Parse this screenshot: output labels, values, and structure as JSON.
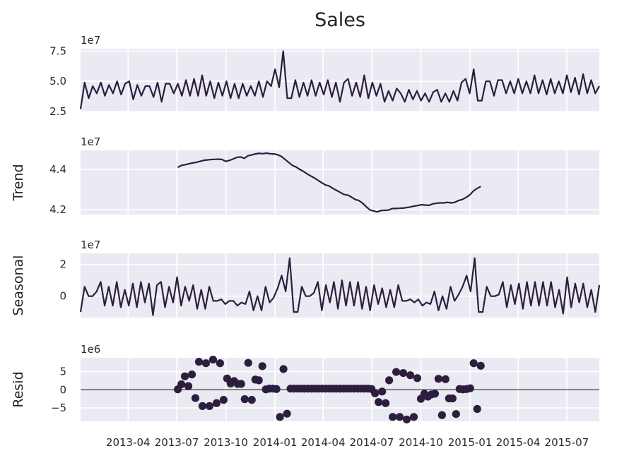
{
  "chart_data": {
    "type": "line",
    "title": "Sales",
    "color": "#2d1e3e",
    "background": "#eaeaf2",
    "grid": true,
    "x_range": [
      "2013-01-02",
      "2015-08-31"
    ],
    "x_ticks": [
      "2013-04",
      "2013-07",
      "2013-10",
      "2014-01",
      "2014-04",
      "2014-07",
      "2014-10",
      "2015-01",
      "2015-04",
      "2015-07"
    ],
    "panels": [
      {
        "id": "observed",
        "ylabel": "",
        "multiplier": "1e7",
        "style": "line",
        "ylim": [
          2.5,
          7.7
        ],
        "yticks": [
          "2.5",
          "5.0",
          "7.5"
        ],
        "ytick_values": [
          2.5,
          5.0,
          7.5
        ],
        "values": [
          2.7,
          4.9,
          3.6,
          4.6,
          4.0,
          4.9,
          3.8,
          4.7,
          4.0,
          5.0,
          3.9,
          4.8,
          5.0,
          3.5,
          4.7,
          3.8,
          4.6,
          4.6,
          3.7,
          4.9,
          3.3,
          4.8,
          4.8,
          4.0,
          4.8,
          3.8,
          5.1,
          3.8,
          5.2,
          3.8,
          5.5,
          3.8,
          5.0,
          3.6,
          4.9,
          3.8,
          5.0,
          3.6,
          4.8,
          3.6,
          4.8,
          3.8,
          4.6,
          3.8,
          5.0,
          3.7,
          5.0,
          4.6,
          6.0,
          4.5,
          7.5,
          3.6,
          3.6,
          5.1,
          3.7,
          4.9,
          3.8,
          5.1,
          3.8,
          4.9,
          3.9,
          5.1,
          3.7,
          4.9,
          3.3,
          4.9,
          5.2,
          3.8,
          4.9,
          3.7,
          5.5,
          3.6,
          4.9,
          3.8,
          4.8,
          3.3,
          4.2,
          3.4,
          4.4,
          4.0,
          3.3,
          4.3,
          3.5,
          4.2,
          3.4,
          4.0,
          3.3,
          4.1,
          4.3,
          3.3,
          4.0,
          3.3,
          4.2,
          3.4,
          4.9,
          5.2,
          4.0,
          6.0,
          3.4,
          3.4,
          5.0,
          5.0,
          3.8,
          5.1,
          5.1,
          4.0,
          5.0,
          4.0,
          5.2,
          4.0,
          5.0,
          4.0,
          5.5,
          4.0,
          5.1,
          3.9,
          5.2,
          4.0,
          5.0,
          4.0,
          5.5,
          4.1,
          5.3,
          3.9,
          5.6,
          4.0,
          5.1,
          4.0,
          4.6
        ],
        "x_start": "2013-01-02",
        "x_end": "2015-08-31"
      },
      {
        "id": "trend",
        "ylabel": "Trend",
        "multiplier": "1e7",
        "style": "line",
        "ylim": [
          4.175,
          4.495
        ],
        "yticks": [
          "4.2",
          "4.4"
        ],
        "ytick_values": [
          4.2,
          4.4
        ],
        "values": [
          4.41,
          4.42,
          4.423,
          4.428,
          4.432,
          4.435,
          4.44,
          4.445,
          4.447,
          4.449,
          4.45,
          4.451,
          4.449,
          4.44,
          4.445,
          4.452,
          4.46,
          4.462,
          4.455,
          4.468,
          4.472,
          4.477,
          4.48,
          4.478,
          4.481,
          4.478,
          4.477,
          4.473,
          4.465,
          4.45,
          4.435,
          4.42,
          4.412,
          4.4,
          4.39,
          4.378,
          4.367,
          4.357,
          4.345,
          4.333,
          4.322,
          4.317,
          4.305,
          4.295,
          4.285,
          4.275,
          4.272,
          4.262,
          4.25,
          4.245,
          4.232,
          4.214,
          4.198,
          4.193,
          4.188,
          4.195,
          4.196,
          4.197,
          4.205,
          4.205,
          4.206,
          4.207,
          4.21,
          4.213,
          4.217,
          4.22,
          4.224,
          4.222,
          4.221,
          4.228,
          4.231,
          4.233,
          4.233,
          4.236,
          4.233,
          4.236,
          4.245,
          4.25,
          4.26,
          4.272,
          4.292,
          4.305,
          4.315
        ],
        "x_start": "2013-07-03",
        "x_end": "2015-01-21"
      },
      {
        "id": "seasonal",
        "ylabel": "Seasonal",
        "multiplier": "1e7",
        "style": "line",
        "ylim": [
          -1.35,
          2.7
        ],
        "yticks": [
          "0",
          "2"
        ],
        "ytick_values": [
          0,
          2
        ],
        "values": [
          -1.0,
          0.6,
          0.0,
          0.0,
          0.3,
          0.9,
          -0.6,
          0.6,
          -0.6,
          0.9,
          -0.7,
          0.4,
          -0.6,
          0.8,
          -0.7,
          0.9,
          -0.4,
          0.8,
          -1.2,
          0.7,
          0.9,
          -0.7,
          0.6,
          -0.4,
          1.2,
          -0.6,
          0.6,
          -0.3,
          0.7,
          -0.8,
          0.4,
          -0.8,
          0.6,
          -0.3,
          -0.3,
          -0.2,
          -0.5,
          -0.3,
          -0.3,
          -0.6,
          -0.4,
          -0.5,
          0.3,
          -0.9,
          0.0,
          -0.9,
          0.6,
          -0.4,
          -0.1,
          0.5,
          1.3,
          0.3,
          2.4,
          -1.0,
          -1.0,
          0.6,
          0.0,
          0.0,
          0.2,
          0.9,
          -0.9,
          0.7,
          -0.4,
          0.9,
          -0.8,
          1.0,
          -0.6,
          0.9,
          -0.6,
          0.9,
          -0.8,
          0.6,
          -0.9,
          0.7,
          -0.5,
          0.5,
          -0.7,
          0.4,
          -0.7,
          0.7,
          -0.3,
          -0.3,
          -0.2,
          -0.4,
          -0.2,
          -0.6,
          -0.4,
          -0.5,
          0.3,
          -0.9,
          0.0,
          -0.8,
          0.6,
          -0.3,
          0.1,
          0.6,
          1.3,
          0.3,
          2.4,
          -1.0,
          -1.0,
          0.6,
          0.0,
          0.0,
          0.1,
          0.9,
          -0.7,
          0.7,
          -0.5,
          0.8,
          -0.8,
          0.9,
          -0.6,
          0.9,
          -0.6,
          0.9,
          -0.6,
          0.9,
          -0.7,
          0.4,
          -1.1,
          1.2,
          -0.7,
          0.8,
          -0.4,
          0.8,
          -0.7,
          0.4,
          -1.0,
          0.7
        ],
        "x_start": "2013-01-02",
        "x_end": "2015-08-31"
      },
      {
        "id": "resid",
        "ylabel": "Resid",
        "multiplier": "1e6",
        "style": "scatter",
        "ylim": [
          -8.7,
          8.8
        ],
        "yticks": [
          "5",
          "0",
          "−5"
        ],
        "ytick_values": [
          5,
          0,
          -5
        ],
        "values": [
          0.1,
          1.5,
          3.7,
          1.0,
          4.2,
          -2.3,
          7.7,
          -4.5,
          7.3,
          -4.5,
          8.3,
          -3.7,
          7.3,
          -2.8,
          3.1,
          1.7,
          2.4,
          1.6,
          1.6,
          -2.6,
          7.4,
          -2.8,
          2.8,
          2.6,
          6.5,
          0.1,
          0.3,
          0.3,
          0.2,
          -7.5,
          5.7,
          -6.6,
          0.3,
          0.3,
          0.3,
          0.3,
          0.3,
          0.3,
          0.3,
          0.3,
          0.3,
          0.3,
          0.3,
          0.3,
          0.3,
          0.3,
          0.3,
          0.3,
          0.3,
          0.3,
          0.3,
          0.3,
          0.3,
          0.3,
          0.3,
          0.2,
          -1.0,
          -3.4,
          -0.5,
          -3.7,
          2.6,
          -7.5,
          4.9,
          -7.5,
          4.6,
          -8.2,
          4.0,
          -7.5,
          3.2,
          -2.5,
          -1.1,
          -1.9,
          -1.3,
          -1.1,
          3.0,
          -7.0,
          2.9,
          -2.4,
          -2.4,
          -6.7,
          0.2,
          0.1,
          0.2,
          0.4,
          7.3,
          -5.3,
          6.6
        ],
        "x_start": "2013-07-03",
        "x_end": "2015-01-21"
      }
    ]
  }
}
